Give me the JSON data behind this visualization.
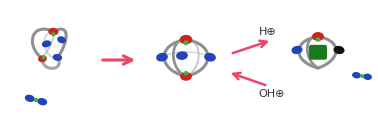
{
  "bg_color": "#ffffff",
  "arrow_color": "#ee4466",
  "curve_color": "#909090",
  "curve_color2": "#b0b0b0",
  "red_color": "#cc2222",
  "blue_color": "#2244bb",
  "green_color": "#1a7a1a",
  "dark_color": "#111111",
  "H_label": "H⊕",
  "OH_label": "OH⊕",
  "label_fontsize": 8,
  "label_color": "#333333",
  "lw_main": 2.2,
  "lw_thin": 1.4
}
